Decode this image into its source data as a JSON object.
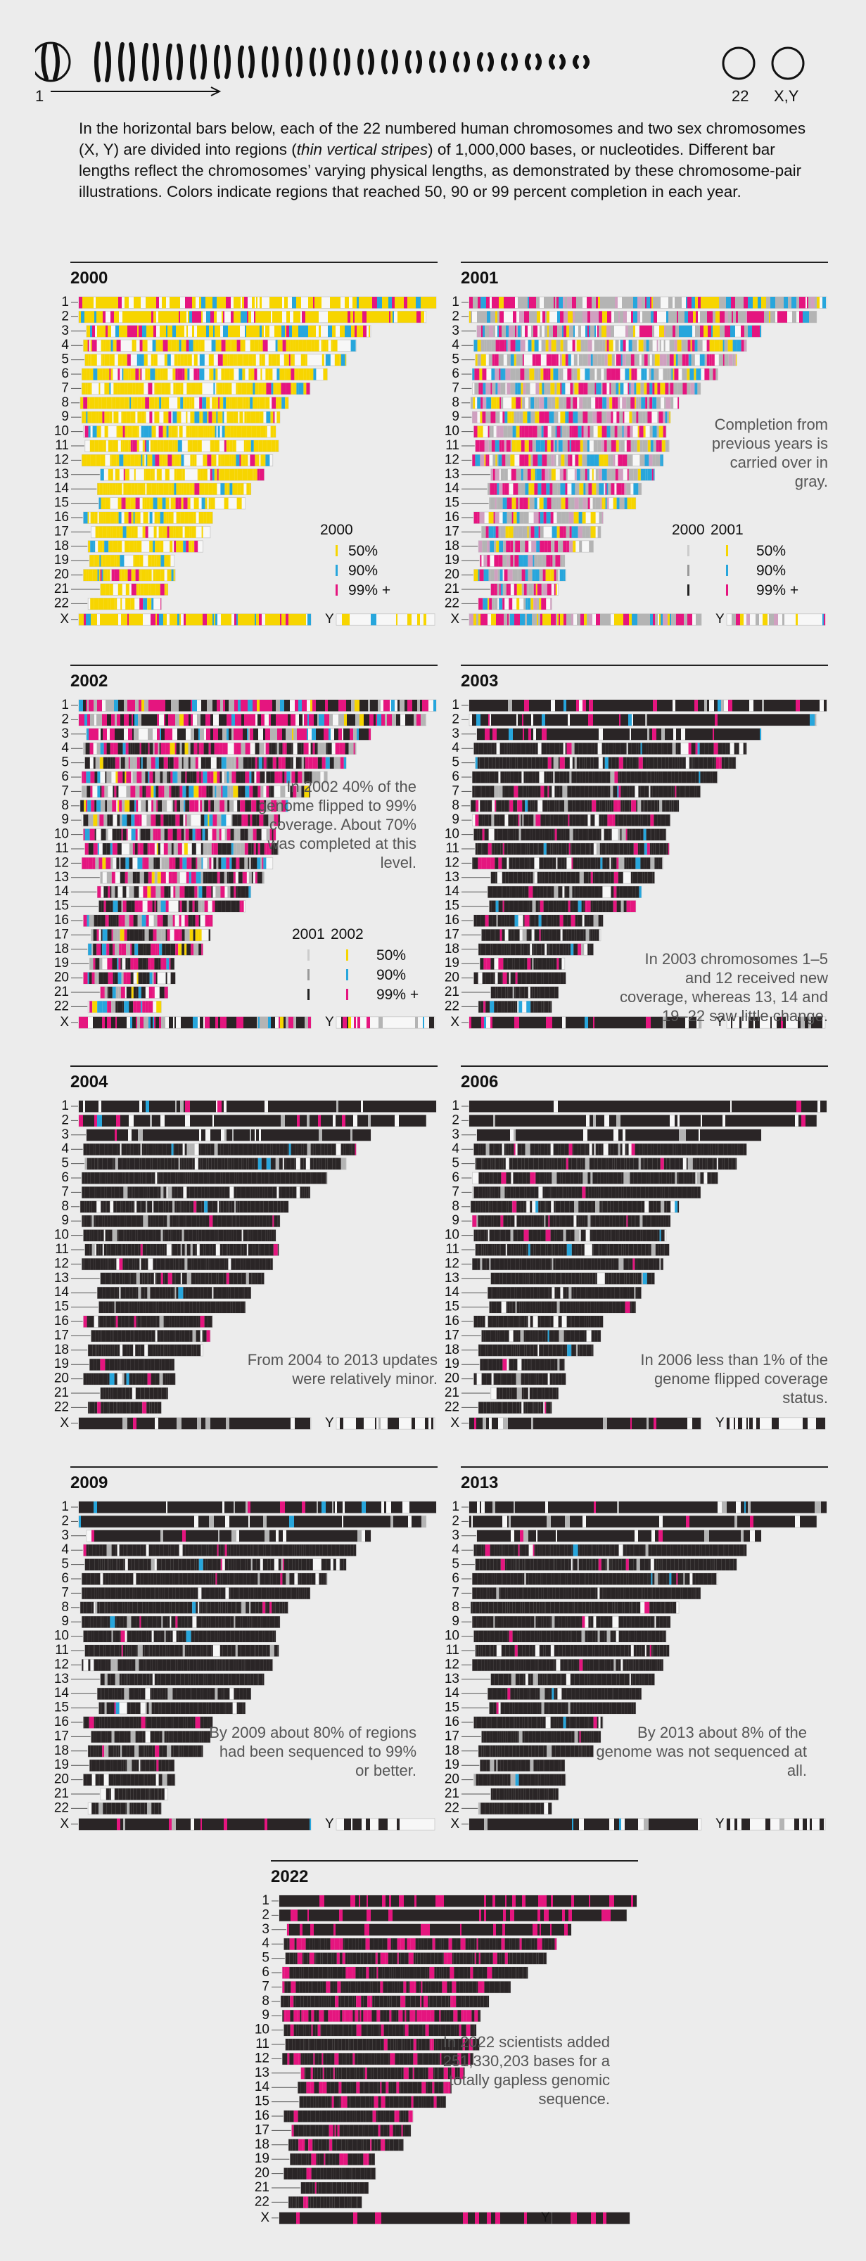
{
  "intro": {
    "part1": "In the horizontal bars below, each of the 22 numbered human chromosomes and two sex chromosomes (X, Y) are divided into regions (",
    "italic": "thin vertical stripes",
    "part2": ") of 1,000,000 bases, or nucleotides. Different bar lengths reflect the chromosomes’ varying physical lengths, as demonstrated by these chromosome-pair illustrations. Colors indicate regions that reached 50, 90 or 99 percent completion in each year."
  },
  "karyotype": {
    "label_first": "1",
    "label_22": "22",
    "label_xy": "X,Y"
  },
  "colors": {
    "c50": "#f7d500",
    "c90": "#27a6dc",
    "c99": "#e5157f",
    "done": "#2a2526",
    "gray": "#b4b4b4",
    "bg": "#ececec",
    "empty": "#f7f7f7"
  },
  "chart_data": {
    "type": "heatmap",
    "row_labels": [
      "1",
      "2",
      "3",
      "4",
      "5",
      "6",
      "7",
      "8",
      "9",
      "10",
      "11",
      "12",
      "13",
      "14",
      "15",
      "16",
      "17",
      "18",
      "19",
      "20",
      "21",
      "22",
      "X",
      "Y"
    ],
    "relative_lengths": [
      249,
      242,
      198,
      190,
      182,
      171,
      159,
      145,
      138,
      134,
      135,
      133,
      114,
      107,
      102,
      90,
      83,
      80,
      59,
      64,
      47,
      51,
      156,
      57
    ],
    "legend_levels": [
      "50%",
      "90%",
      "99% +"
    ],
    "panels": [
      {
        "year": "2000",
        "note": "",
        "legend_years": [
          "2000"
        ]
      },
      {
        "year": "2001",
        "note": "Completion from previous years is carried over in gray.",
        "legend_years": [
          "2000",
          "2001"
        ]
      },
      {
        "year": "2002",
        "note": "In 2002 40% of the genome flipped to 99% coverage. About 70% was completed at this level.",
        "legend_years": [
          "2001",
          "2002"
        ]
      },
      {
        "year": "2003",
        "note": "In 2003 chromosomes 1–5 and 12 received new coverage, whereas 13, 14 and 19–22 saw little change.",
        "legend_years": []
      },
      {
        "year": "2004",
        "note": "From 2004 to 2013 updates were relatively minor.",
        "legend_years": []
      },
      {
        "year": "2006",
        "note": "In 2006 less than 1% of the genome flipped coverage status.",
        "legend_years": []
      },
      {
        "year": "2009",
        "note": "By 2009 about 80% of regions had been sequenced to 99% or better.",
        "legend_years": []
      },
      {
        "year": "2013",
        "note": "By 2013 about 8% of the genome was not sequenced at all.",
        "legend_years": []
      },
      {
        "year": "2022",
        "note": "In 2022 scientists added 251,330,203 bases for a totally gapless genomic sequence.",
        "legend_years": []
      }
    ]
  }
}
